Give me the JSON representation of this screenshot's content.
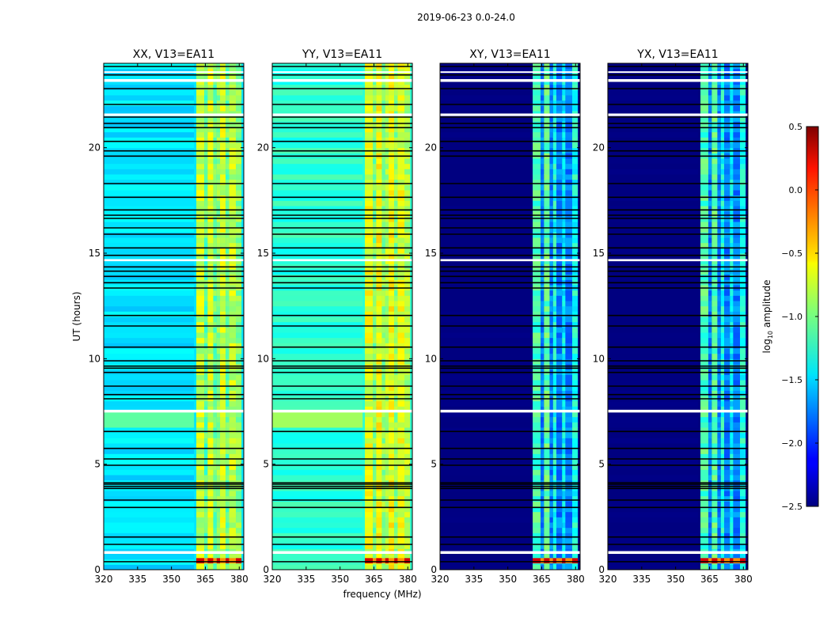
{
  "figure": {
    "suptitle": "2019-06-23 0.0-24.0",
    "xlabel": "frequency (MHz)",
    "ylabel": "UT (hours)",
    "colorbar_label": "log10 amplitude",
    "colorbar_label_base": "log",
    "colorbar_label_sub": "10",
    "colorbar_label_rest": " amplitude",
    "colorbar_ticks": [
      "0.5",
      "0.0",
      "−0.5",
      "−1.0",
      "−1.5",
      "−2.0",
      "−2.5"
    ],
    "colormap": "jet"
  },
  "chart_data": {
    "type": "heatmap",
    "xlim": [
      320,
      382
    ],
    "ylim": [
      0,
      24
    ],
    "xticks": [
      320,
      335,
      350,
      365,
      380
    ],
    "yticks": [
      0,
      5,
      10,
      15,
      20
    ],
    "clim": [
      -2.5,
      0.5
    ],
    "colorbar_ticks": [
      0.5,
      0.0,
      -0.5,
      -1.0,
      -1.5,
      -2.0,
      -2.5
    ],
    "panels": [
      {
        "title": "XX, V13=EA11",
        "base_level": -1.45,
        "band_level": -1.05,
        "type": "parallel"
      },
      {
        "title": "YY, V13=EA11",
        "base_level": -1.25,
        "band_level": -0.95,
        "type": "parallel"
      },
      {
        "title": "XY, V13=EA11",
        "base_level": -2.5,
        "band_level": -1.4,
        "type": "cross"
      },
      {
        "title": "YX, V13=EA11",
        "base_level": -2.5,
        "band_level": -1.4,
        "type": "cross"
      }
    ],
    "band_mhz": [
      361,
      381
    ],
    "high_amplitude_interval_hours": [
      0.3,
      0.55
    ],
    "flagged_white_hours": [
      [
        0.75,
        0.88
      ],
      [
        7.45,
        7.58
      ],
      [
        14.62,
        14.72
      ],
      [
        21.5,
        21.62
      ],
      [
        23.12,
        23.25
      ],
      [
        23.55,
        23.62
      ]
    ],
    "gap_black_hours": [
      0.38,
      1.2,
      1.55,
      2.95,
      3.3,
      3.85,
      3.95,
      4.05,
      4.12,
      4.95,
      5.25,
      5.75,
      6.55,
      8.1,
      8.3,
      8.7,
      9.35,
      9.55,
      9.65,
      9.9,
      10.55,
      11.55,
      12.05,
      13.35,
      13.6,
      13.9,
      14.15,
      14.35,
      14.9,
      15.25,
      15.9,
      16.2,
      16.65,
      16.8,
      17.05,
      17.65,
      18.3,
      19.6,
      19.85,
      20.3,
      20.95,
      21.15,
      21.45,
      22.05,
      22.8,
      23.45,
      23.85
    ]
  }
}
